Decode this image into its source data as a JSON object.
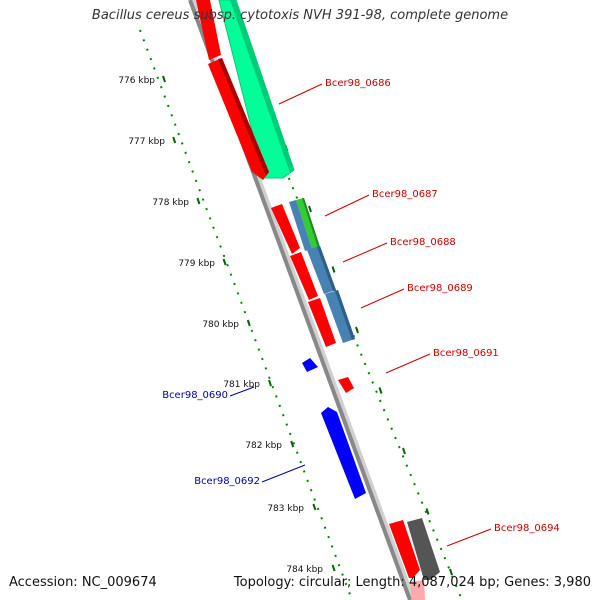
{
  "title": "Bacillus cereus subsp. cytotoxis NVH 391-98, complete genome",
  "footer": {
    "accession": "Accession: NC_009674",
    "summary": "Topology: circular; Length: 4,087,024 bp; Genes: 3,980"
  },
  "colors": {
    "forward_cds": "#ff0000",
    "reverse_cds": "#0000ff",
    "rna": "#00ff99",
    "blue_gray": "#4682b4",
    "green": "#33cc33",
    "dark_gray": "#555555",
    "pink": "#ffaaaa",
    "backbone": "#888888",
    "ticks": "#008800",
    "label_red": "#cc0000",
    "label_blue": "#0000aa"
  },
  "ticks": [
    "776 kbp",
    "777 kbp",
    "778 kbp",
    "779 kbp",
    "780 kbp",
    "781 kbp",
    "782 kbp",
    "783 kbp",
    "784 kbp"
  ],
  "genes": [
    {
      "label": "Bcer98_0686",
      "color": "label_red"
    },
    {
      "label": "Bcer98_0687",
      "color": "label_red"
    },
    {
      "label": "Bcer98_0688",
      "color": "label_red"
    },
    {
      "label": "Bcer98_0689",
      "color": "label_red"
    },
    {
      "label": "Bcer98_0691",
      "color": "label_red"
    },
    {
      "label": "Bcer98_0690",
      "color": "label_blue"
    },
    {
      "label": "Bcer98_0692",
      "color": "label_blue"
    },
    {
      "label": "Bcer98_0694",
      "color": "label_red"
    }
  ]
}
